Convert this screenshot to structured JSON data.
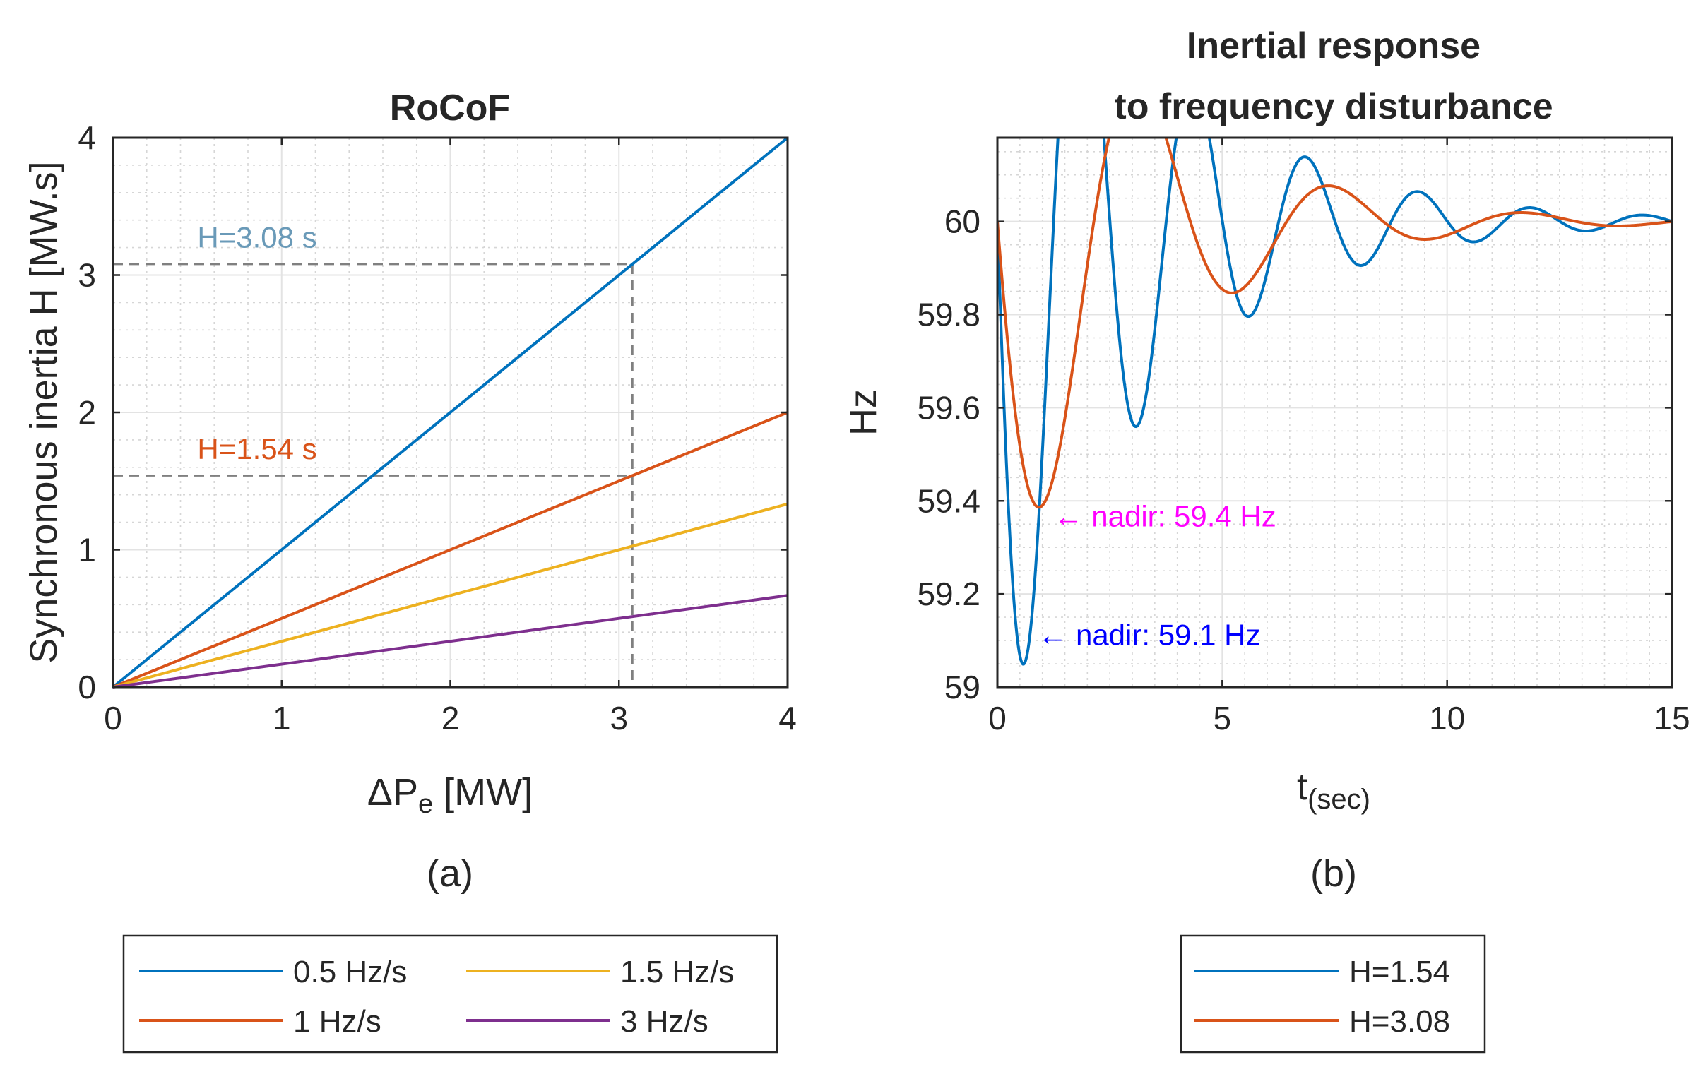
{
  "chart_data": [
    {
      "type": "line",
      "caption": "(a)",
      "title": "RoCoF",
      "xlabel_main": "ΔP",
      "xlabel_sub": "e",
      "xlabel_unit": "[MW]",
      "ylabel": "Synchronous inertia H [MW.s]",
      "xlim": [
        0,
        4
      ],
      "ylim": [
        0,
        4
      ],
      "xticks": [
        0,
        1,
        2,
        3,
        4
      ],
      "yticks": [
        0,
        1,
        2,
        3,
        4
      ],
      "grid": true,
      "minor_grid": true,
      "series": [
        {
          "name": "0.5 Hz/s",
          "color": "#0072BD",
          "x": [
            0,
            4
          ],
          "y": [
            0,
            4
          ]
        },
        {
          "name": "1 Hz/s",
          "color": "#D95319",
          "x": [
            0,
            4
          ],
          "y": [
            0,
            2
          ]
        },
        {
          "name": "1.5 Hz/s",
          "color": "#EDB120",
          "x": [
            0,
            4
          ],
          "y": [
            0,
            1.333
          ]
        },
        {
          "name": "3 Hz/s",
          "color": "#7E2F8E",
          "x": [
            0,
            4
          ],
          "y": [
            0,
            0.667
          ]
        }
      ],
      "reference_lines": [
        {
          "x": 3.08,
          "y": 3.08,
          "color": "#808080"
        },
        {
          "x": 3.08,
          "y": 1.54,
          "color": "#808080"
        }
      ],
      "annotations": [
        {
          "text": "H=3.08 s",
          "x": 0.5,
          "y": 3.2,
          "color": "#6A9AB8"
        },
        {
          "text": "H=1.54 s",
          "x": 0.5,
          "y": 1.66,
          "color": "#D95319"
        }
      ],
      "legend": [
        "0.5 Hz/s",
        "1 Hz/s",
        "1.5 Hz/s",
        "3 Hz/s"
      ],
      "legend_location": "bottom-outside"
    },
    {
      "type": "line",
      "caption": "(b)",
      "title_lines": [
        "Inertial response",
        "to frequency disturbance"
      ],
      "xlabel_main": "t",
      "xlabel_sub": "(sec)",
      "ylabel": "Hz",
      "xlim": [
        0,
        15
      ],
      "ylim": [
        59,
        60.18
      ],
      "xticks": [
        0,
        5,
        10,
        15
      ],
      "yticks": [
        59,
        59.2,
        59.4,
        59.6,
        59.8,
        60
      ],
      "ytick_labels": [
        "59",
        "59.2",
        "59.4",
        "59.6",
        "59.8",
        "60"
      ],
      "grid": true,
      "minor_grid": true,
      "series": [
        {
          "name": "H=1.54",
          "color": "#0072BD",
          "model": {
            "A": 0.946,
            "zeta": 0.1216,
            "omega": 2.53,
            "t_nadir": 0.8,
            "t_max": 15
          }
        },
        {
          "name": "H=3.08",
          "color": "#D95319",
          "model": {
            "A": 0.722,
            "zeta": 0.2154,
            "omega": 1.5,
            "t_nadir": 1.15,
            "t_max": 15
          }
        }
      ],
      "annotations": [
        {
          "text": "← nadir: 59.4 Hz",
          "x": 1.25,
          "y": 59.345,
          "color": "#FF00FF"
        },
        {
          "text": "← nadir: 59.1 Hz",
          "x": 0.9,
          "y": 59.09,
          "color": "#0000FF"
        }
      ],
      "legend": [
        "H=1.54",
        "H=3.08"
      ],
      "legend_location": "bottom-outside"
    }
  ]
}
